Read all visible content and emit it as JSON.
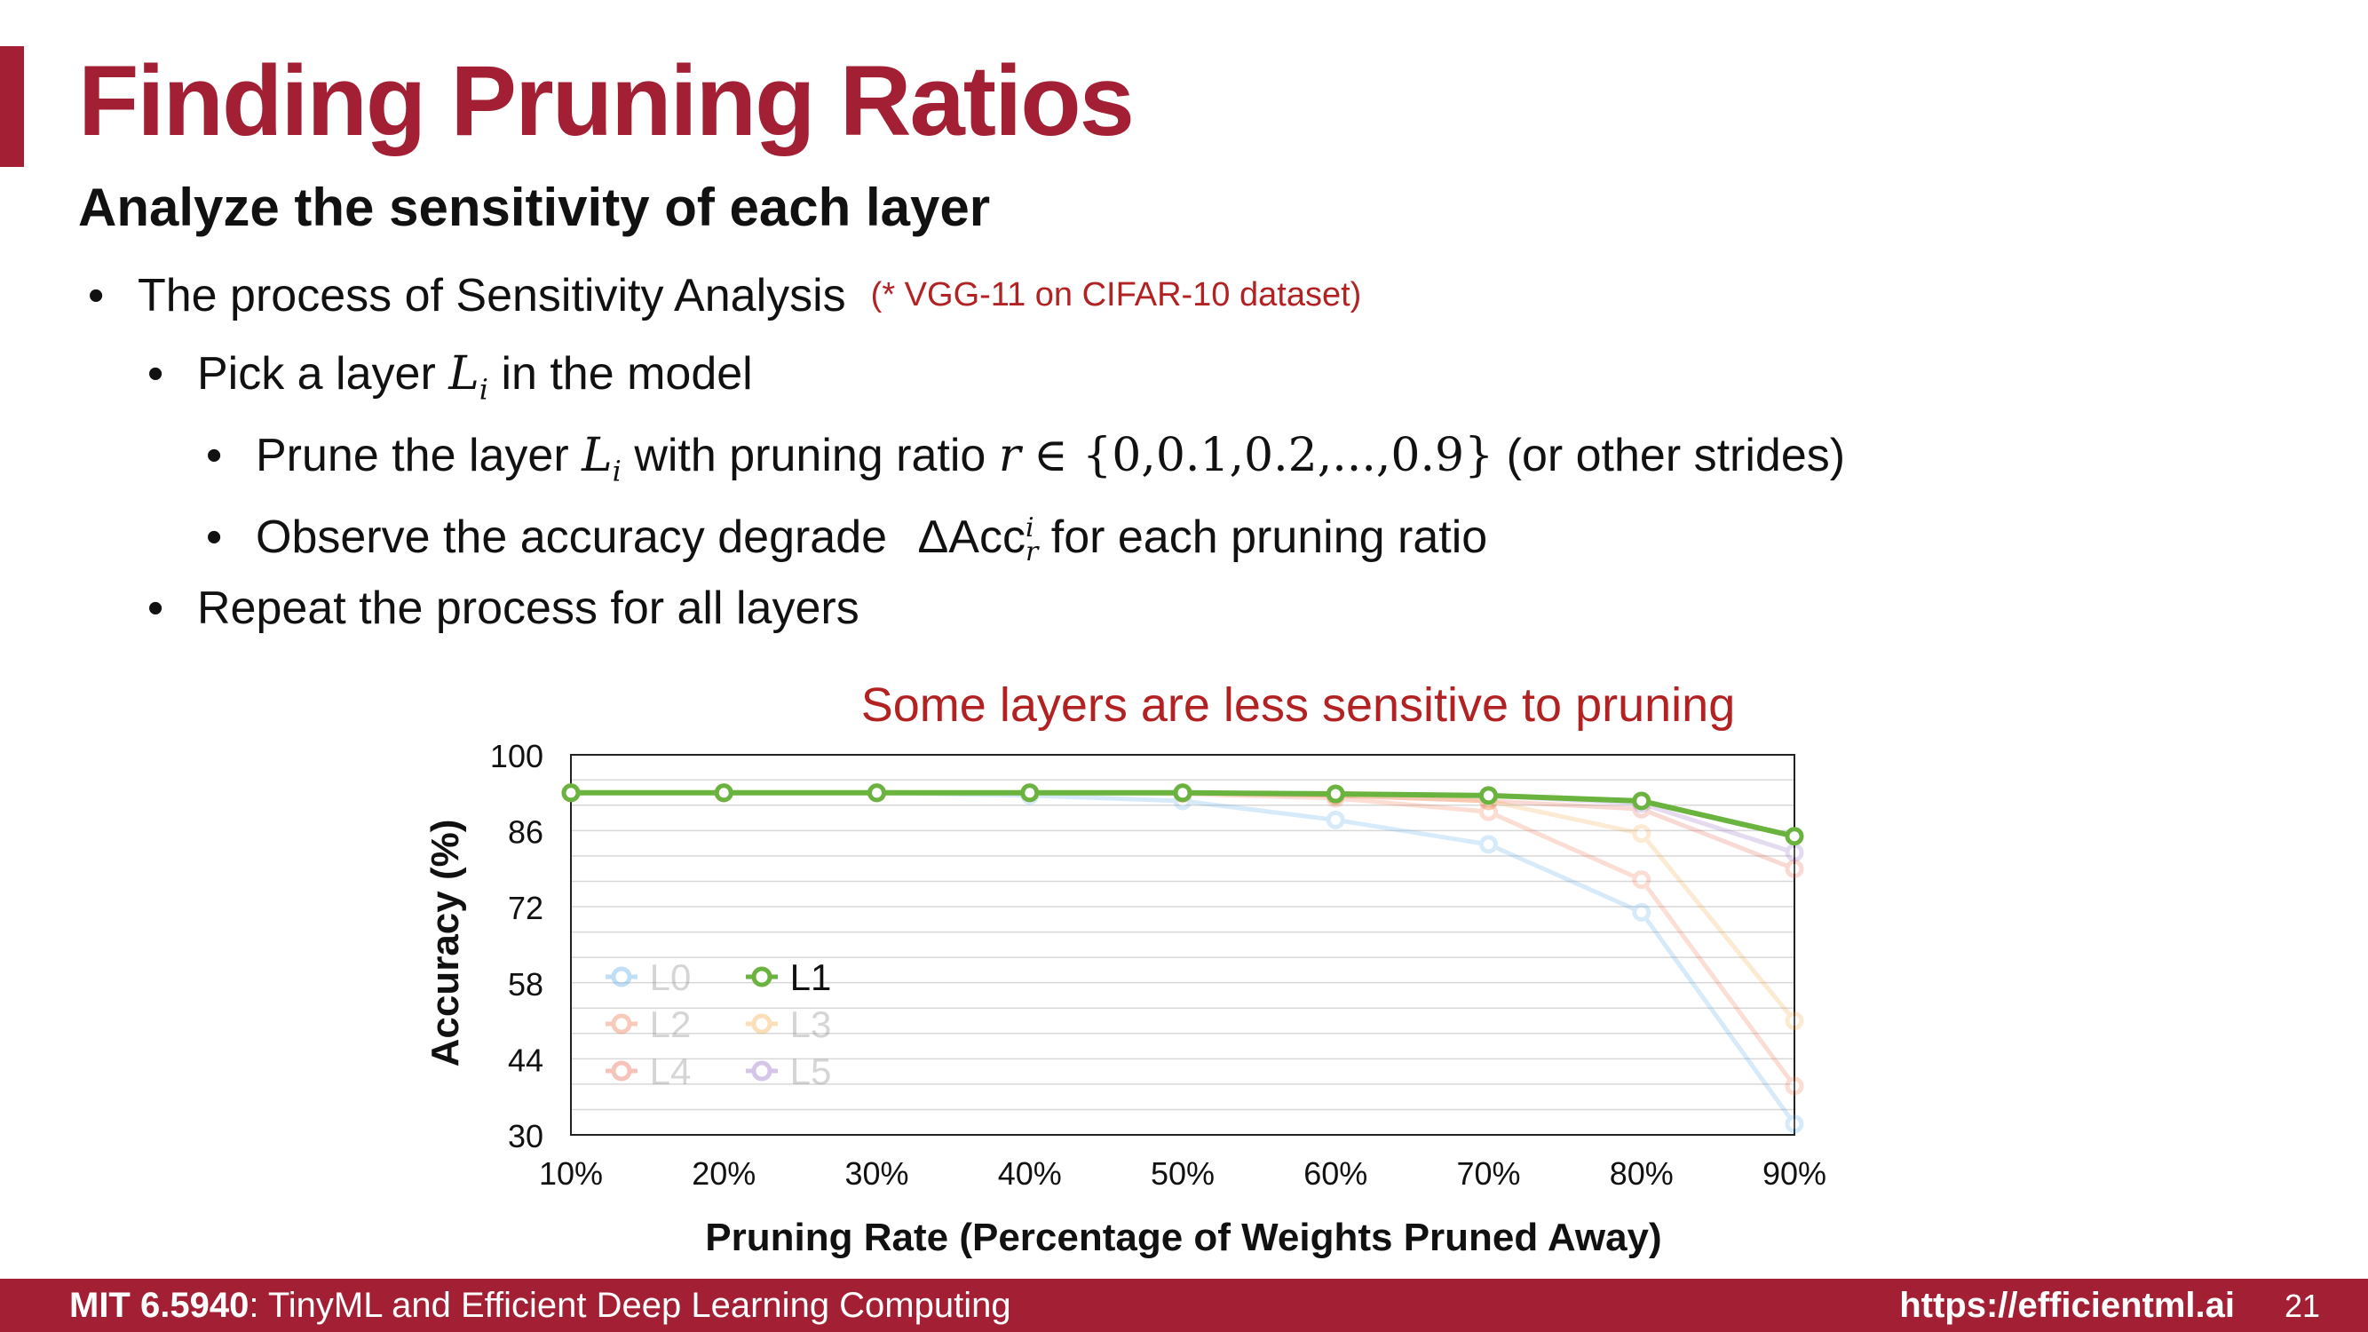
{
  "slide": {
    "title": "Finding Pruning Ratios",
    "subtitle": "Analyze the sensitivity of each layer",
    "bullets": {
      "b1": "The process of Sensitivity Analysis",
      "b1_note": "(* VGG-11 on CIFAR-10 dataset)",
      "b2_pre": "Pick a layer",
      "b2_var": "L",
      "b2_sub": "i",
      "b2_post": "in the model",
      "b3_pre": "Prune the layer",
      "b3_var": "L",
      "b3_sub": "i",
      "b3_mid": "with pruning ratio",
      "b3_r": "r",
      "b3_set": "∈ {0,0.1,0.2,...,0.9}",
      "b3_post": "(or other strides)",
      "b4_pre": "Observe the accuracy degrade",
      "b4_delta": "ΔAcc",
      "b4_sup": "i",
      "b4_sub": "r",
      "b4_post": "for each pruning ratio",
      "b5": "Repeat the process for all layers"
    },
    "bullet_glyph": "•"
  },
  "footer": {
    "course_code": "MIT 6.5940",
    "course_name": ": TinyML and Efficient Deep Learning Computing",
    "url": "https://efficientml.ai",
    "page": "21"
  },
  "colors": {
    "accent": "#a31f34",
    "L0": "#4ea3e8",
    "L1": "#6ab33e",
    "L2": "#f06a3a",
    "L3": "#f2a43a",
    "L4": "#e4573a",
    "L5": "#8a5fc2"
  },
  "chart_data": {
    "type": "line",
    "title": "Some layers are less sensitive to pruning",
    "xlabel": "Pruning Rate (Percentage of Weights Pruned Away)",
    "ylabel": "Accuracy (%)",
    "categories": [
      "10%",
      "20%",
      "30%",
      "40%",
      "50%",
      "60%",
      "70%",
      "80%",
      "90%"
    ],
    "ylim": [
      30,
      100
    ],
    "yticks": [
      "30",
      "44",
      "58",
      "72",
      "86",
      "100"
    ],
    "grid": true,
    "highlighted": "L1",
    "series": [
      {
        "name": "L0",
        "values": [
          93,
          93,
          93,
          92.5,
          91.5,
          88,
          83.5,
          71,
          32
        ]
      },
      {
        "name": "L1",
        "values": [
          93,
          93,
          93,
          93,
          93,
          92.8,
          92.5,
          91.5,
          85
        ]
      },
      {
        "name": "L2",
        "values": [
          93,
          93,
          93,
          93,
          92.8,
          92,
          89.5,
          77,
          39
        ]
      },
      {
        "name": "L3",
        "values": [
          93,
          93,
          93,
          93,
          93,
          92.5,
          91.5,
          85.5,
          51
        ]
      },
      {
        "name": "L4",
        "values": [
          93,
          93,
          93,
          93,
          93,
          92.5,
          91.5,
          90,
          79
        ]
      },
      {
        "name": "L5",
        "values": [
          93,
          93,
          93,
          93,
          93,
          92.8,
          92.5,
          91,
          82
        ]
      }
    ]
  }
}
